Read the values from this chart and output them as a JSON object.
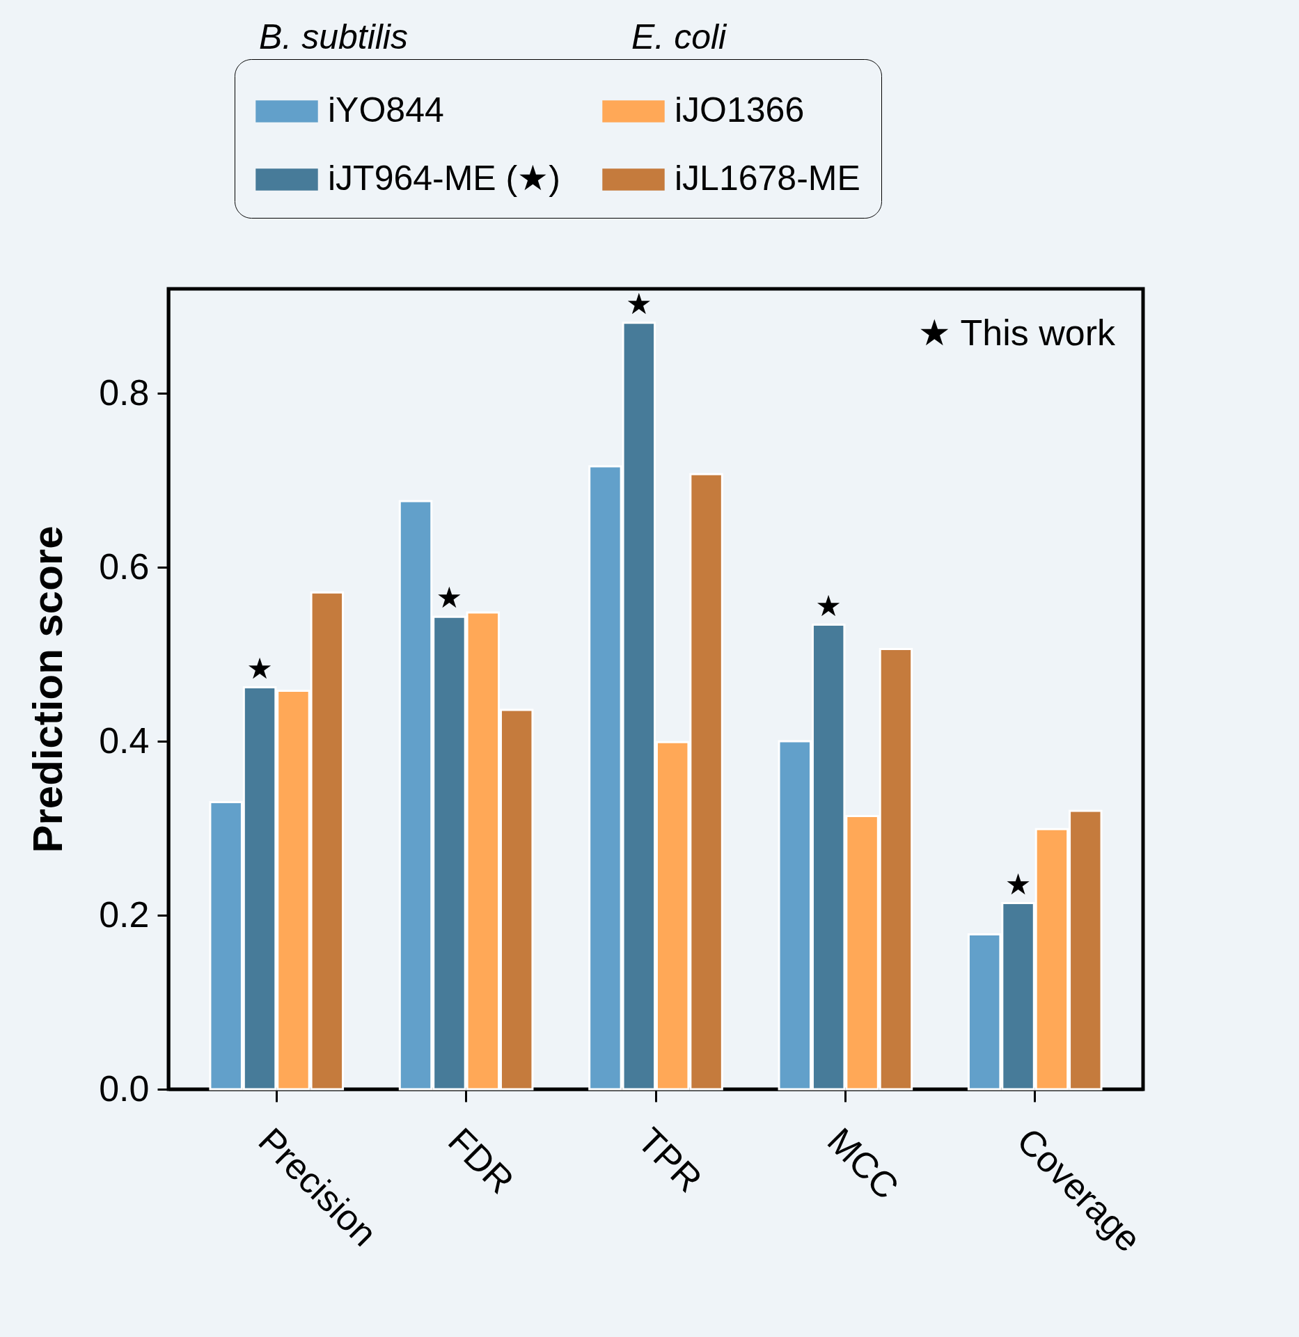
{
  "chart_data": {
    "type": "bar",
    "ylabel": "Prediction score",
    "categories": [
      "Precision",
      "FDR",
      "TPR",
      "MCC",
      "Coverage"
    ],
    "series": [
      {
        "name": "iYO844",
        "color": "#62a0ca",
        "values": [
          0.33,
          0.676,
          0.716,
          0.4,
          0.178
        ]
      },
      {
        "name": "iJT964-ME (★)",
        "color": "#477b99",
        "values": [
          0.462,
          0.543,
          0.881,
          0.534,
          0.214
        ]
      },
      {
        "name": "iJO1366",
        "color": "#ffa857",
        "values": [
          0.458,
          0.548,
          0.399,
          0.314,
          0.299
        ]
      },
      {
        "name": "iJL1678-ME",
        "color": "#c57b3d",
        "values": [
          0.571,
          0.436,
          0.707,
          0.506,
          0.32
        ]
      }
    ],
    "ylim": [
      0,
      0.92
    ],
    "yticks": [
      {
        "value": 0,
        "label": "0.0"
      },
      0.2,
      0.4,
      0.6,
      0.8
    ],
    "grid": false,
    "legend": "top",
    "annotations": [
      "B. subtilis",
      "E. coli",
      "★ This work",
      {
        "text": "★",
        "x": "Precision",
        "y": 0.462
      },
      {
        "text": "★",
        "x": "FDR",
        "y": 0.543
      },
      {
        "text": "★",
        "x": "TPR",
        "y": 0.881
      },
      {
        "text": "★",
        "x": "MCC",
        "y": 0.534
      },
      {
        "text": "★",
        "x": "Coverage",
        "y": 0.214
      }
    ]
  }
}
